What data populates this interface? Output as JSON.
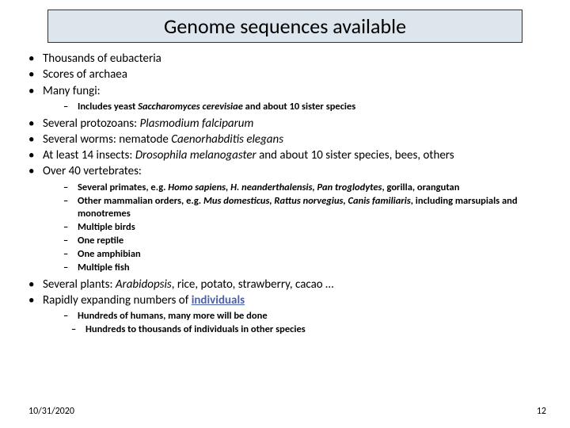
{
  "title": "Genome sequences available",
  "bullets": {
    "b1": "Thousands of eubacteria",
    "b2": "Scores of archaea",
    "b3": "Many fungi:",
    "b3_sub1_a": "Includes yeast ",
    "b3_sub1_b": "Saccharomyces cerevisiae",
    "b3_sub1_c": " and about 10 sister species",
    "b4_a": "Several protozoans: ",
    "b4_b": "Plasmodium falciparum",
    "b5_a": "Several worms: nematode ",
    "b5_b": "Caenorhabditis elegans",
    "b6_a": "At least 14 insects: ",
    "b6_b": "Drosophila melanogaster",
    "b6_c": "  and about 10 sister species, bees, others",
    "b7": "Over 40 vertebrates:",
    "b7_sub1_a": "Several primates, e.g. ",
    "b7_sub1_b": "Homo sapiens, H. neanderthalensis, Pan troglodytes",
    "b7_sub1_c": ", gorilla, orangutan",
    "b7_sub2_a": "Other mammalian orders, e.g. ",
    "b7_sub2_b": "Mus domesticus, Rattus norvegius, Canis familiaris",
    "b7_sub2_c": ", including marsupials and monotremes",
    "b7_sub3": "Multiple birds",
    "b7_sub4": "One reptile",
    "b7_sub5": "One amphibian",
    "b7_sub6": "Multiple fish",
    "b8_a": "Several plants: ",
    "b8_b": "Arabidopsis",
    "b8_c": ", rice, potato, strawberry, cacao …",
    "b9_a": "Rapidly expanding numbers of ",
    "b9_b": "individuals",
    "b9_sub1": "Hundreds of humans, many more will be done",
    "b9_sub2": "Hundreds to thousands of individuals in other species"
  },
  "footer": {
    "date": "10/31/2020",
    "page": "12"
  },
  "colors": {
    "title_bg": "#dce6ec",
    "link": "#4b5fab"
  }
}
